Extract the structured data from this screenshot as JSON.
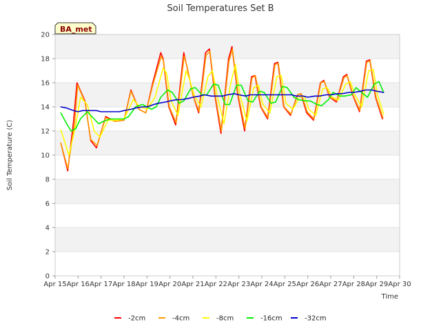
{
  "chart_data": {
    "type": "line",
    "title": "Soil Temperatures Set B",
    "xlabel": "Time",
    "ylabel": "Soil Temperature (C)",
    "site_label": "BA_met",
    "x_unit": "day of April",
    "xlim": [
      15,
      30
    ],
    "ylim": [
      0,
      20
    ],
    "x_ticks": [
      15,
      16,
      17,
      18,
      19,
      20,
      21,
      22,
      23,
      24,
      25,
      26,
      27,
      28,
      29,
      30
    ],
    "x_tick_labels": [
      "Apr 15",
      "Apr 16",
      "Apr 17",
      "Apr 18",
      "Apr 19",
      "Apr 20",
      "Apr 21",
      "Apr 22",
      "Apr 23",
      "Apr 24",
      "Apr 25",
      "Apr 26",
      "Apr 27",
      "Apr 28",
      "Apr 29",
      "Apr 30"
    ],
    "y_ticks": [
      0,
      2,
      4,
      6,
      8,
      10,
      12,
      14,
      16,
      18,
      20
    ],
    "y_tick_labels": [
      "0",
      "2",
      "4",
      "6",
      "8",
      "10",
      "12",
      "14",
      "16",
      "18",
      "20"
    ],
    "grid": true,
    "background_bands": "alternating light gray",
    "legend_position": "bottom-center",
    "series": [
      {
        "name": "-2cm",
        "color": "#ff0000",
        "x": [
          15.25,
          15.55,
          15.8,
          15.95,
          16.3,
          16.55,
          16.8,
          17.2,
          17.6,
          18.0,
          18.3,
          18.65,
          18.95,
          19.25,
          19.6,
          19.7,
          19.95,
          20.25,
          20.6,
          20.72,
          21.0,
          21.25,
          21.55,
          21.72,
          21.95,
          22.22,
          22.55,
          22.7,
          22.95,
          23.25,
          23.55,
          23.7,
          23.95,
          24.25,
          24.55,
          24.7,
          24.95,
          25.25,
          25.55,
          25.7,
          25.95,
          26.25,
          26.55,
          26.7,
          26.95,
          27.25,
          27.55,
          27.7,
          27.95,
          28.25,
          28.55,
          28.7,
          28.95,
          29.25
        ],
        "y": [
          11.0,
          8.7,
          12.8,
          16.0,
          14.5,
          11.2,
          10.6,
          13.2,
          12.8,
          12.9,
          15.4,
          13.8,
          13.5,
          16.0,
          18.5,
          18.0,
          14.0,
          12.5,
          18.5,
          17.5,
          15.0,
          13.5,
          18.5,
          18.8,
          15.0,
          11.8,
          18.0,
          19.0,
          15.0,
          12.0,
          16.5,
          16.6,
          14.0,
          13.0,
          17.6,
          17.7,
          14.0,
          13.3,
          15.0,
          15.1,
          13.5,
          12.9,
          16.0,
          16.2,
          14.8,
          14.4,
          16.5,
          16.7,
          15.0,
          13.6,
          17.8,
          17.9,
          14.8,
          13.0
        ]
      },
      {
        "name": "-4cm",
        "color": "#ff9900",
        "x": [
          15.25,
          15.55,
          15.85,
          15.98,
          16.3,
          16.55,
          16.82,
          17.2,
          17.6,
          18.0,
          18.3,
          18.65,
          18.95,
          19.25,
          19.62,
          19.72,
          19.97,
          20.27,
          20.62,
          20.74,
          21.0,
          21.27,
          21.57,
          21.74,
          21.97,
          22.24,
          22.57,
          22.72,
          22.97,
          23.27,
          23.57,
          23.72,
          23.97,
          24.27,
          24.57,
          24.72,
          24.97,
          25.27,
          25.57,
          25.72,
          25.97,
          26.27,
          26.57,
          26.72,
          26.97,
          27.27,
          27.57,
          27.72,
          27.97,
          28.27,
          28.57,
          28.72,
          28.97,
          29.27
        ],
        "y": [
          11.0,
          8.9,
          12.6,
          15.8,
          14.4,
          11.3,
          10.8,
          13.1,
          12.8,
          12.9,
          15.3,
          13.8,
          13.5,
          15.8,
          18.2,
          17.8,
          14.0,
          12.7,
          18.2,
          17.4,
          15.0,
          13.6,
          18.3,
          18.6,
          15.0,
          12.0,
          17.8,
          18.8,
          15.0,
          12.2,
          16.4,
          16.6,
          14.0,
          13.1,
          17.5,
          17.6,
          14.0,
          13.4,
          15.0,
          15.1,
          13.6,
          13.0,
          16.0,
          16.1,
          14.8,
          14.5,
          16.4,
          16.6,
          15.0,
          13.7,
          17.7,
          17.8,
          14.8,
          13.1
        ]
      },
      {
        "name": "-8cm",
        "color": "#ffff00",
        "x": [
          15.25,
          15.6,
          15.9,
          16.1,
          16.4,
          16.7,
          16.95,
          17.3,
          17.7,
          18.0,
          18.4,
          18.7,
          19.0,
          19.35,
          19.7,
          19.85,
          20.05,
          20.35,
          20.7,
          20.85,
          21.05,
          21.35,
          21.65,
          21.85,
          22.05,
          22.35,
          22.65,
          22.85,
          23.05,
          23.35,
          23.65,
          23.85,
          24.05,
          24.35,
          24.65,
          24.85,
          25.05,
          25.35,
          25.65,
          25.85,
          26.05,
          26.35,
          26.65,
          26.85,
          27.05,
          27.35,
          27.65,
          27.85,
          28.05,
          28.35,
          28.65,
          28.85,
          29.05,
          29.3
        ],
        "y": [
          12.1,
          10.0,
          12.5,
          14.8,
          14.2,
          12.0,
          11.5,
          12.9,
          12.9,
          13.0,
          14.6,
          14.0,
          13.8,
          14.8,
          17.2,
          16.8,
          14.5,
          13.3,
          17.0,
          16.3,
          15.0,
          14.0,
          16.5,
          17.0,
          15.0,
          12.6,
          16.0,
          17.5,
          15.0,
          12.8,
          15.6,
          15.8,
          14.2,
          13.5,
          16.5,
          16.6,
          14.3,
          13.8,
          14.8,
          14.9,
          13.8,
          13.3,
          15.5,
          15.6,
          14.8,
          14.6,
          15.9,
          16.1,
          15.0,
          14.0,
          17.0,
          17.1,
          14.9,
          13.4
        ]
      },
      {
        "name": "-16cm",
        "color": "#00ee00",
        "x": [
          15.25,
          15.5,
          15.7,
          15.9,
          16.1,
          16.4,
          16.6,
          16.9,
          17.1,
          17.4,
          17.7,
          18.0,
          18.2,
          18.5,
          18.8,
          19.0,
          19.2,
          19.4,
          19.6,
          19.9,
          20.1,
          20.4,
          20.6,
          20.9,
          21.1,
          21.4,
          21.6,
          21.9,
          22.1,
          22.4,
          22.6,
          22.9,
          23.1,
          23.4,
          23.6,
          23.9,
          24.1,
          24.4,
          24.6,
          24.9,
          25.1,
          25.4,
          25.6,
          25.9,
          26.1,
          26.4,
          26.6,
          26.9,
          27.1,
          27.4,
          27.6,
          27.9,
          28.1,
          28.4,
          28.6,
          28.9,
          29.1,
          29.3
        ],
        "y": [
          13.5,
          12.6,
          12.0,
          12.2,
          13.0,
          13.6,
          13.2,
          12.6,
          12.8,
          13.0,
          13.0,
          13.0,
          13.2,
          14.0,
          14.2,
          14.0,
          13.8,
          14.0,
          14.8,
          15.4,
          15.2,
          14.3,
          14.5,
          15.5,
          15.6,
          15.0,
          15.0,
          15.9,
          15.8,
          14.2,
          14.2,
          15.8,
          15.8,
          14.5,
          14.4,
          15.3,
          15.2,
          14.3,
          14.4,
          15.7,
          15.6,
          14.8,
          14.6,
          14.5,
          14.5,
          14.2,
          14.1,
          14.6,
          15.2,
          14.9,
          14.9,
          15.0,
          15.6,
          15.1,
          14.8,
          15.9,
          16.1,
          15.2
        ]
      },
      {
        "name": "-32cm",
        "color": "#0000cc",
        "x": [
          15.25,
          15.5,
          15.8,
          16.0,
          16.2,
          16.5,
          16.8,
          17.0,
          17.3,
          17.5,
          17.8,
          18.0,
          18.3,
          18.5,
          18.8,
          19.0,
          19.3,
          19.5,
          19.8,
          20.0,
          20.3,
          20.5,
          20.8,
          21.0,
          21.3,
          21.5,
          21.8,
          22.0,
          22.3,
          22.5,
          22.8,
          23.0,
          23.3,
          23.5,
          23.8,
          24.0,
          24.3,
          24.5,
          24.8,
          25.0,
          25.3,
          25.5,
          25.8,
          26.0,
          26.3,
          26.5,
          26.8,
          27.0,
          27.3,
          27.5,
          27.8,
          28.0,
          28.3,
          28.5,
          28.8,
          29.0,
          29.3
        ],
        "y": [
          14.0,
          13.9,
          13.7,
          13.6,
          13.7,
          13.7,
          13.7,
          13.6,
          13.6,
          13.6,
          13.6,
          13.7,
          13.8,
          13.9,
          14.0,
          14.0,
          14.2,
          14.3,
          14.4,
          14.5,
          14.6,
          14.6,
          14.7,
          14.8,
          14.9,
          15.0,
          14.9,
          14.9,
          14.9,
          15.0,
          15.1,
          15.0,
          14.9,
          15.0,
          15.0,
          15.0,
          15.0,
          15.0,
          15.0,
          15.0,
          15.0,
          14.9,
          14.9,
          14.8,
          14.9,
          14.9,
          15.0,
          15.0,
          15.1,
          15.1,
          15.2,
          15.2,
          15.3,
          15.4,
          15.4,
          15.3,
          15.2
        ]
      }
    ]
  }
}
